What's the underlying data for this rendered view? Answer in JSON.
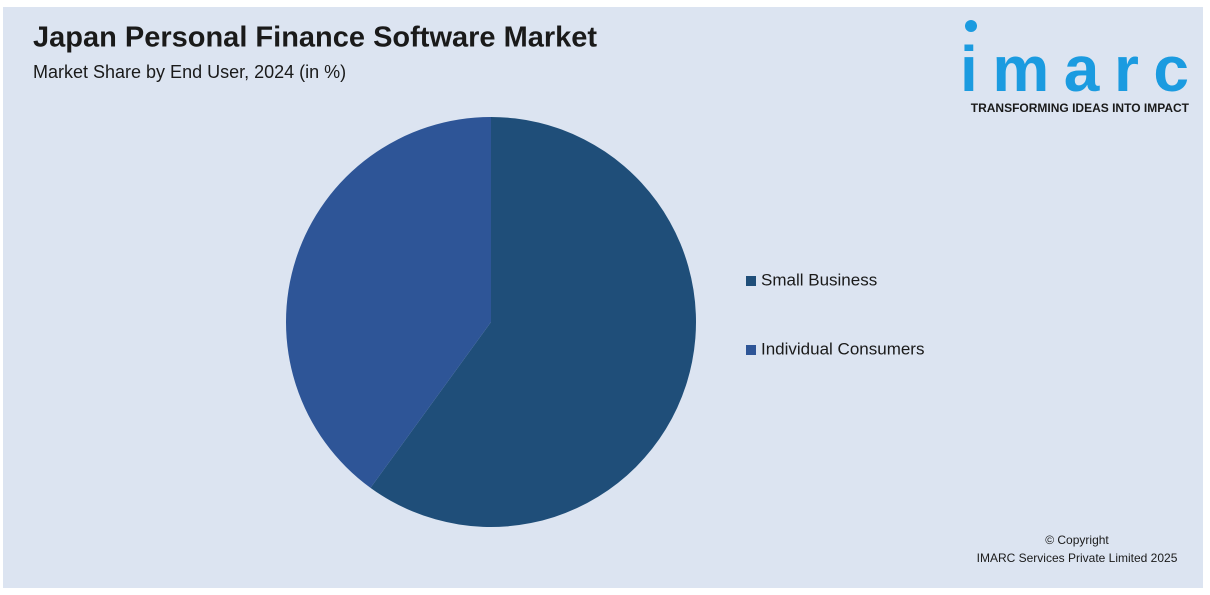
{
  "chart_data": {
    "type": "pie",
    "title": "Japan Personal Finance Software Market",
    "subtitle": "Market Share by End User, 2024 (in %)",
    "categories": [
      "Small Business",
      "Individual Consumers"
    ],
    "values": [
      60,
      40
    ],
    "colors": [
      "#1f4e79",
      "#2e5597"
    ],
    "legend": "right"
  },
  "logo": {
    "name": "imarc",
    "tagline": "TRANSFORMING IDEAS INTO IMPACT"
  },
  "footer": {
    "copyright": "© Copyright",
    "company": "IMARC Services Private Limited 2025"
  }
}
